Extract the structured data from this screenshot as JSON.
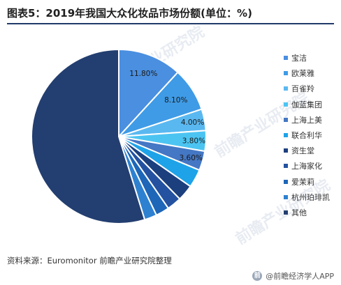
{
  "title": "图表5：2019年我国大众化妆品市场份额(单位：%)",
  "source": "资料来源：Euromonitor 前瞻产业研究院整理",
  "brand": {
    "icon": "前",
    "text": "@前瞻经济学人APP"
  },
  "watermarks": [
    "前瞻产业研究院",
    "前瞻产业研究院",
    "前瞻产业研究院"
  ],
  "chart_data": {
    "type": "pie",
    "title": "2019年我国大众化妆品市场份额",
    "unit": "%",
    "legend_position": "right",
    "start_angle_deg": 0,
    "direction": "clockwise",
    "slices": [
      {
        "name": "宝洁",
        "value": 11.8,
        "label": "11.80%",
        "color": "#4a8fe0",
        "show_label": true
      },
      {
        "name": "欧莱雅",
        "value": 8.1,
        "label": "8.10%",
        "color": "#3f9be6",
        "show_label": true
      },
      {
        "name": "百雀羚",
        "value": 4.0,
        "label": "4.00%",
        "color": "#5ab8f0",
        "show_label": true
      },
      {
        "name": "伽蓝集团",
        "value": 3.8,
        "label": "3.80%",
        "color": "#4cc4f2",
        "show_label": true
      },
      {
        "name": "上海上美",
        "value": 3.6,
        "label": "3.60%",
        "color": "#4477c4",
        "show_label": true
      },
      {
        "name": "联合利华",
        "value": 3.4,
        "label": "",
        "color": "#1ea3e8",
        "show_label": false
      },
      {
        "name": "资生堂",
        "value": 3.0,
        "label": "",
        "color": "#1c3f7e",
        "show_label": false
      },
      {
        "name": "上海家化",
        "value": 2.7,
        "label": "",
        "color": "#2452a0",
        "show_label": false
      },
      {
        "name": "爱茉莉",
        "value": 2.5,
        "label": "",
        "color": "#1d66b8",
        "show_label": false
      },
      {
        "name": "杭州珀琲凯",
        "value": 2.3,
        "label": "",
        "color": "#2e81d0",
        "show_label": false
      },
      {
        "name": "其他",
        "value": 54.8,
        "label": "",
        "color": "#233e70",
        "show_label": false
      }
    ]
  }
}
